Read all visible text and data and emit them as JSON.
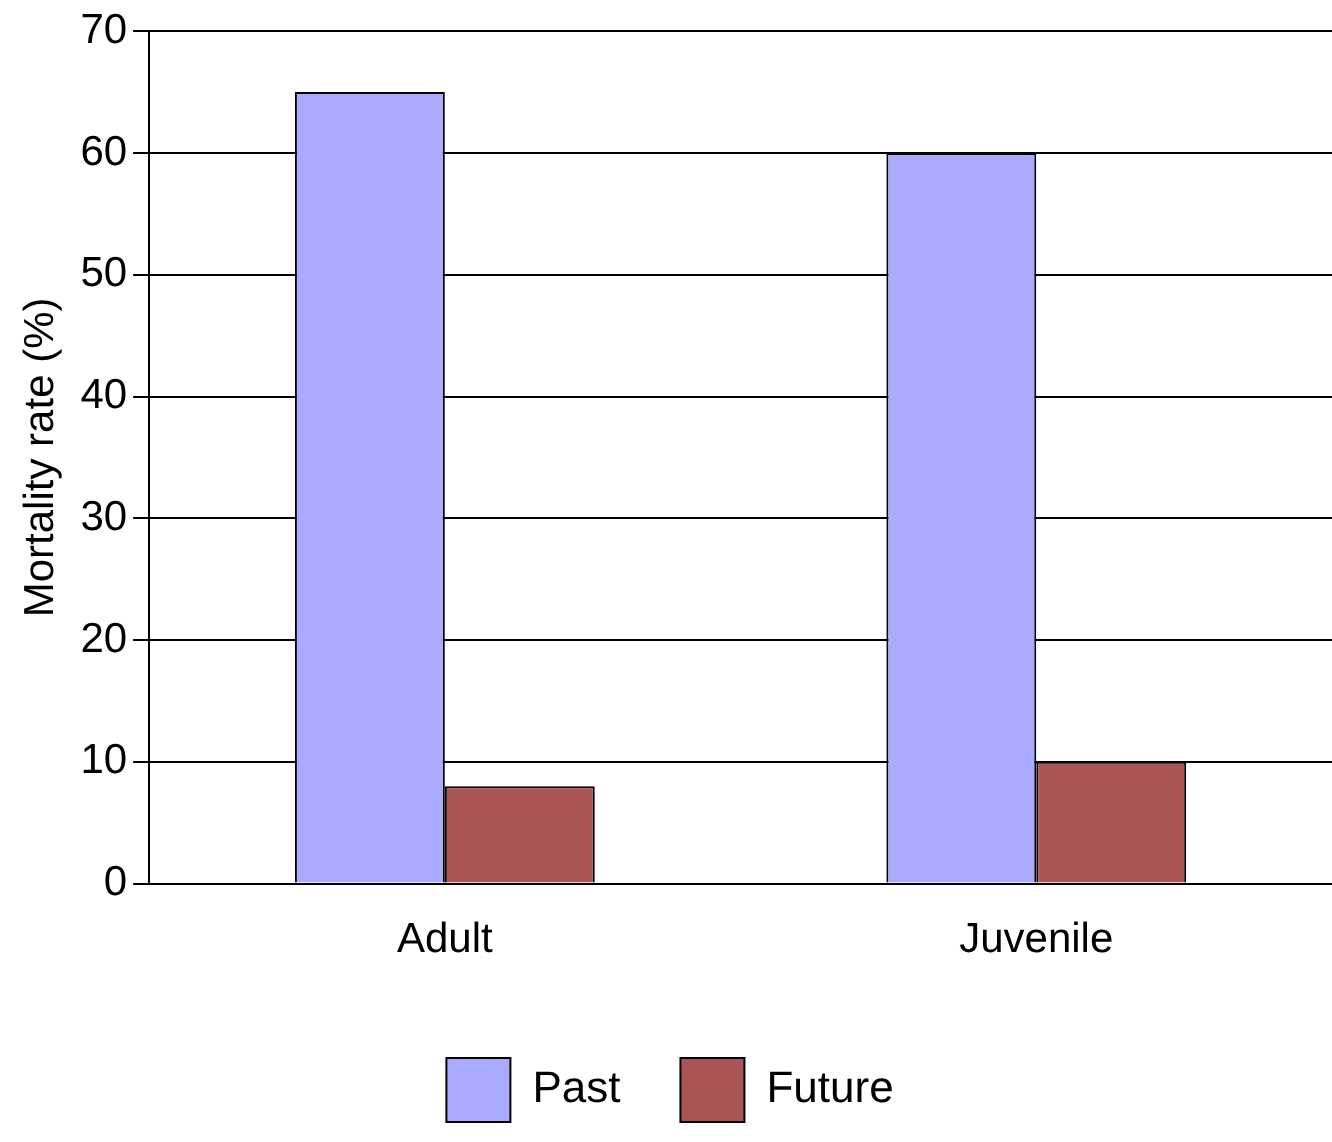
{
  "chart_data": {
    "type": "bar",
    "ylabel": "Mortality rate (%)",
    "categories": [
      "Adult",
      "Juvenile"
    ],
    "series": [
      {
        "name": "Past",
        "color": "#aaaaff",
        "values": [
          65,
          60
        ]
      },
      {
        "name": "Future",
        "color": "#aa5555",
        "values": [
          8,
          10
        ]
      }
    ],
    "ylim": [
      0,
      70
    ],
    "yticks": [
      0,
      10,
      20,
      30,
      40,
      50,
      60,
      70
    ],
    "grid": "y",
    "legend": "bottom"
  }
}
